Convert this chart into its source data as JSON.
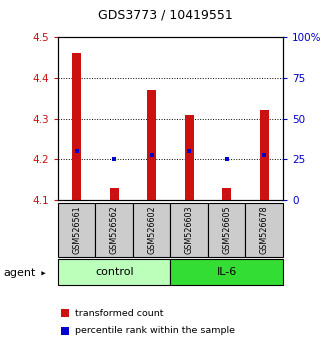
{
  "title": "GDS3773 / 10419551",
  "samples": [
    "GSM526561",
    "GSM526562",
    "GSM526602",
    "GSM526603",
    "GSM526605",
    "GSM526678"
  ],
  "groups": [
    {
      "name": "control",
      "color": "#bbffbb",
      "indices": [
        0,
        1,
        2
      ]
    },
    {
      "name": "IL-6",
      "color": "#33dd33",
      "indices": [
        3,
        4,
        5
      ]
    }
  ],
  "bar_values": [
    4.46,
    4.13,
    4.37,
    4.31,
    4.13,
    4.32
  ],
  "bar_base": 4.1,
  "percentile_values": [
    4.22,
    4.2,
    4.21,
    4.22,
    4.2,
    4.21
  ],
  "ylim_left": [
    4.1,
    4.5
  ],
  "ylim_right": [
    0,
    100
  ],
  "yticks_left": [
    4.1,
    4.2,
    4.3,
    4.4,
    4.5
  ],
  "yticks_right": [
    0,
    25,
    50,
    75,
    100
  ],
  "ytick_labels_right": [
    "0",
    "25",
    "50",
    "75",
    "100%"
  ],
  "bar_color": "#cc1111",
  "percentile_color": "#0000cc",
  "left_tick_color": "#cc1111",
  "right_tick_color": "#0000cc",
  "agent_label": "agent",
  "legend_bar_label": "transformed count",
  "legend_pct_label": "percentile rank within the sample",
  "bar_width": 0.25,
  "sample_box_color": "#cccccc",
  "sample_box_border": "#000000",
  "fig_width": 3.31,
  "fig_height": 3.54
}
